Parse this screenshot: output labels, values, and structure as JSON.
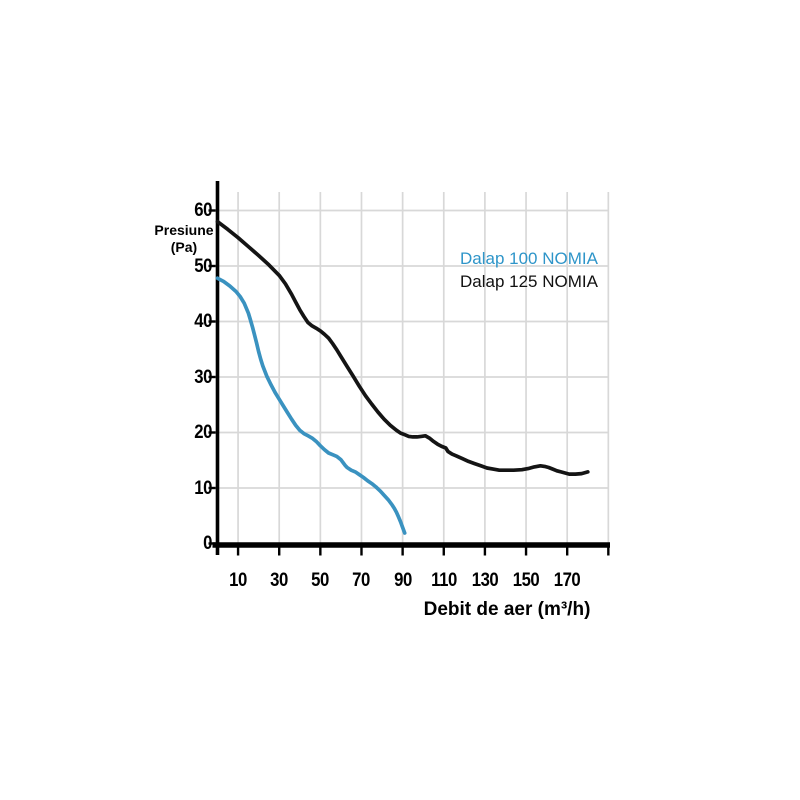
{
  "page": {
    "background": "#ffffff"
  },
  "chart_data": {
    "type": "line",
    "title": "",
    "xlabel": "Debit de aer (m³/h)",
    "ylabel": "Presiune (Pa)",
    "ylabel_line1": "Presiune",
    "ylabel_line2": "(Pa)",
    "xlim": [
      0,
      190
    ],
    "ylim": [
      0,
      65
    ],
    "x_tick_labels": [
      10,
      30,
      50,
      70,
      90,
      110,
      130,
      150,
      170
    ],
    "x_gridlines": [
      10,
      30,
      50,
      70,
      90,
      110,
      130,
      150,
      170,
      190
    ],
    "y_ticks": [
      0,
      10,
      20,
      30,
      40,
      50,
      60
    ],
    "grid": true,
    "grid_color": "#d8d8d8",
    "axis_color": "#000000",
    "legend_position": "upper-right",
    "series": [
      {
        "name": "Dalap 100 NOMIA",
        "color": "#3a92c0",
        "legend_color": "#2e95c9",
        "points": [
          [
            0,
            47.8
          ],
          [
            3,
            47.2
          ],
          [
            6,
            46.4
          ],
          [
            9,
            45.4
          ],
          [
            11,
            44.5
          ],
          [
            13,
            43.3
          ],
          [
            15,
            41.5
          ],
          [
            16,
            40.3
          ],
          [
            17,
            39.0
          ],
          [
            18,
            37.6
          ],
          [
            19,
            36.1
          ],
          [
            20,
            34.6
          ],
          [
            21,
            33.2
          ],
          [
            22,
            32.0
          ],
          [
            24,
            30.1
          ],
          [
            26,
            28.6
          ],
          [
            28,
            27.2
          ],
          [
            30,
            26.0
          ],
          [
            32,
            24.8
          ],
          [
            34,
            23.6
          ],
          [
            36,
            22.4
          ],
          [
            38,
            21.3
          ],
          [
            40,
            20.4
          ],
          [
            42,
            19.8
          ],
          [
            44,
            19.4
          ],
          [
            46,
            19.0
          ],
          [
            48,
            18.4
          ],
          [
            50,
            17.6
          ],
          [
            52,
            16.9
          ],
          [
            54,
            16.3
          ],
          [
            56,
            16.0
          ],
          [
            58,
            15.7
          ],
          [
            60,
            15.1
          ],
          [
            61,
            14.6
          ],
          [
            62,
            14.1
          ],
          [
            63,
            13.7
          ],
          [
            65,
            13.2
          ],
          [
            67,
            12.9
          ],
          [
            69,
            12.4
          ],
          [
            71,
            11.9
          ],
          [
            73,
            11.3
          ],
          [
            75,
            10.8
          ],
          [
            77,
            10.2
          ],
          [
            79,
            9.5
          ],
          [
            81,
            8.7
          ],
          [
            83,
            7.9
          ],
          [
            85,
            6.9
          ],
          [
            86,
            6.3
          ],
          [
            87,
            5.6
          ],
          [
            88,
            4.8
          ],
          [
            89,
            3.9
          ],
          [
            90,
            2.9
          ],
          [
            91,
            1.9
          ]
        ]
      },
      {
        "name": "Dalap 125 NOMIA",
        "color": "#141414",
        "legend_color": "#111111",
        "points": [
          [
            0,
            58
          ],
          [
            5,
            56.6
          ],
          [
            10,
            55.1
          ],
          [
            15,
            53.5
          ],
          [
            20,
            51.9
          ],
          [
            25,
            50.2
          ],
          [
            30,
            48.3
          ],
          [
            33,
            46.8
          ],
          [
            36,
            44.9
          ],
          [
            38,
            43.5
          ],
          [
            40,
            42.1
          ],
          [
            42,
            40.9
          ],
          [
            44,
            39.8
          ],
          [
            46,
            39.2
          ],
          [
            48,
            38.8
          ],
          [
            50,
            38.3
          ],
          [
            52,
            37.7
          ],
          [
            54,
            37.0
          ],
          [
            56,
            36.0
          ],
          [
            58,
            34.9
          ],
          [
            60,
            33.7
          ],
          [
            63,
            31.9
          ],
          [
            66,
            30.1
          ],
          [
            69,
            28.3
          ],
          [
            72,
            26.6
          ],
          [
            75,
            25.1
          ],
          [
            78,
            23.7
          ],
          [
            81,
            22.4
          ],
          [
            84,
            21.3
          ],
          [
            87,
            20.4
          ],
          [
            89,
            19.9
          ],
          [
            91,
            19.6
          ],
          [
            93,
            19.3
          ],
          [
            95,
            19.2
          ],
          [
            97,
            19.2
          ],
          [
            99,
            19.3
          ],
          [
            101,
            19.4
          ],
          [
            103,
            19.0
          ],
          [
            105,
            18.4
          ],
          [
            107,
            17.9
          ],
          [
            109,
            17.5
          ],
          [
            111,
            17.2
          ],
          [
            112,
            16.6
          ],
          [
            114,
            16.1
          ],
          [
            116,
            15.8
          ],
          [
            119,
            15.3
          ],
          [
            122,
            14.8
          ],
          [
            125,
            14.4
          ],
          [
            128,
            14.0
          ],
          [
            131,
            13.6
          ],
          [
            134,
            13.4
          ],
          [
            137,
            13.2
          ],
          [
            140,
            13.2
          ],
          [
            144,
            13.2
          ],
          [
            148,
            13.3
          ],
          [
            151,
            13.5
          ],
          [
            154,
            13.8
          ],
          [
            157,
            14.0
          ],
          [
            159,
            13.9
          ],
          [
            161,
            13.7
          ],
          [
            163,
            13.4
          ],
          [
            165,
            13.1
          ],
          [
            167,
            12.9
          ],
          [
            169,
            12.7
          ],
          [
            171,
            12.5
          ],
          [
            174,
            12.5
          ],
          [
            177,
            12.6
          ],
          [
            180,
            12.9
          ]
        ]
      }
    ]
  }
}
